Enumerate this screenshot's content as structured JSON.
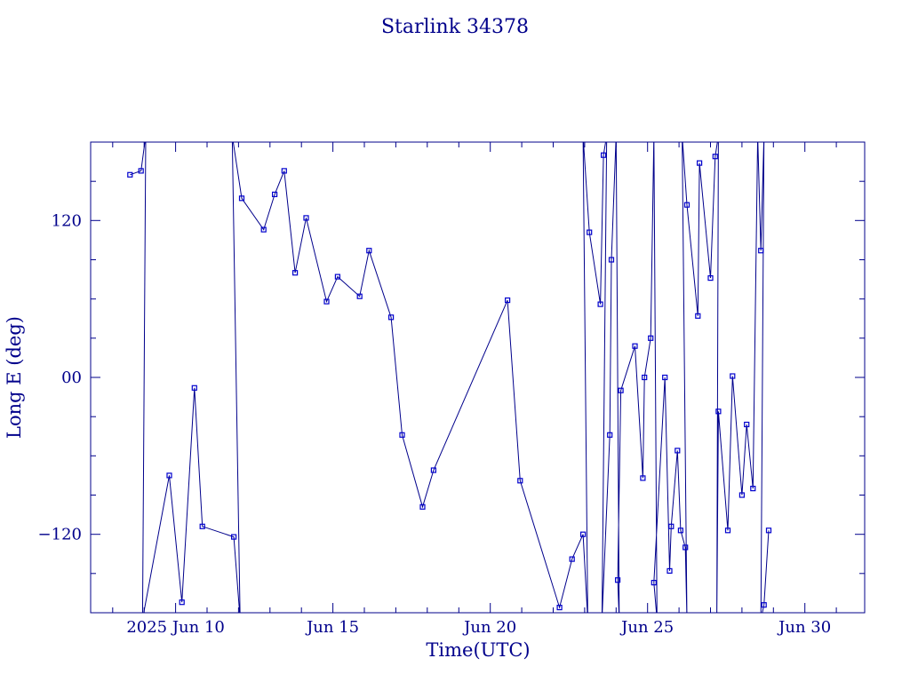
{
  "chart_data": {
    "type": "line",
    "title": "Starlink 34378",
    "xlabel": "Time(UTC)",
    "ylabel": "Long E (deg)",
    "x_unit": "days (2025 June day-of-month)",
    "xlim": [
      7.3,
      31.9
    ],
    "ylim": [
      -180,
      180
    ],
    "x_ticks": [
      {
        "value": 10,
        "label": "2025 Jun 10"
      },
      {
        "value": 15,
        "label": "Jun 15"
      },
      {
        "value": 20,
        "label": "Jun 20"
      },
      {
        "value": 25,
        "label": "Jun 25"
      },
      {
        "value": 30,
        "label": "Jun 30"
      }
    ],
    "y_ticks": [
      {
        "value": 120,
        "label": "120"
      },
      {
        "value": 0,
        "label": "00"
      },
      {
        "value": -120,
        "label": "−120"
      }
    ],
    "color": "#00008b",
    "marker_color": "#0000cd",
    "series": [
      {
        "points": [
          [
            8.55,
            155
          ],
          [
            8.9,
            158
          ],
          [
            9.05,
            185
          ],
          [
            8.95,
            -185
          ],
          [
            9.8,
            -75
          ],
          [
            10.2,
            -172
          ],
          [
            10.6,
            -8
          ],
          [
            10.85,
            -114
          ],
          [
            11.85,
            -122
          ],
          [
            12.05,
            -185
          ],
          [
            11.8,
            185
          ],
          [
            12.1,
            137
          ],
          [
            12.8,
            113
          ],
          [
            13.15,
            140
          ],
          [
            13.45,
            158
          ],
          [
            13.8,
            80
          ],
          [
            14.15,
            122
          ],
          [
            14.8,
            58
          ],
          [
            15.15,
            77
          ],
          [
            15.85,
            62
          ],
          [
            16.15,
            97
          ],
          [
            16.85,
            46
          ],
          [
            17.2,
            -44
          ],
          [
            17.85,
            -99
          ],
          [
            18.2,
            -71
          ],
          [
            20.55,
            59
          ],
          [
            20.95,
            -79
          ],
          [
            22.2,
            -176
          ],
          [
            22.6,
            -139
          ],
          [
            22.95,
            -120
          ],
          [
            23.1,
            -185
          ],
          [
            22.95,
            185
          ],
          [
            23.15,
            111
          ],
          [
            23.5,
            56
          ],
          [
            23.6,
            170
          ],
          [
            23.7,
            185
          ],
          [
            23.55,
            -185
          ],
          [
            23.8,
            -44
          ],
          [
            23.85,
            90
          ],
          [
            24.0,
            185
          ],
          [
            24.1,
            -185
          ],
          [
            24.05,
            -155
          ],
          [
            24.15,
            -10
          ],
          [
            24.6,
            24
          ],
          [
            24.85,
            -77
          ],
          [
            24.9,
            0
          ],
          [
            25.1,
            30
          ],
          [
            25.2,
            185
          ],
          [
            25.3,
            -185
          ],
          [
            25.2,
            -157
          ],
          [
            25.55,
            0
          ],
          [
            25.7,
            -148
          ],
          [
            25.75,
            -114
          ],
          [
            25.95,
            -56
          ],
          [
            26.05,
            -117
          ],
          [
            26.2,
            -130
          ],
          [
            26.25,
            -185
          ],
          [
            26.1,
            185
          ],
          [
            26.25,
            132
          ],
          [
            26.6,
            47
          ],
          [
            26.65,
            164
          ],
          [
            27.0,
            76
          ],
          [
            27.15,
            169
          ],
          [
            27.25,
            185
          ],
          [
            27.2,
            -185
          ],
          [
            27.25,
            -26
          ],
          [
            27.55,
            -117
          ],
          [
            27.7,
            1
          ],
          [
            28.0,
            -90
          ],
          [
            28.15,
            -36
          ],
          [
            28.35,
            -85
          ],
          [
            28.5,
            185
          ],
          [
            28.6,
            97
          ],
          [
            28.7,
            185
          ],
          [
            28.6,
            -185
          ],
          [
            28.7,
            -174
          ],
          [
            28.85,
            -117
          ]
        ],
        "markers": [
          [
            8.55,
            155
          ],
          [
            8.9,
            158
          ],
          [
            9.8,
            -75
          ],
          [
            10.2,
            -172
          ],
          [
            10.6,
            -8
          ],
          [
            10.85,
            -114
          ],
          [
            11.85,
            -122
          ],
          [
            12.1,
            137
          ],
          [
            12.8,
            113
          ],
          [
            13.15,
            140
          ],
          [
            13.45,
            158
          ],
          [
            13.8,
            80
          ],
          [
            14.15,
            122
          ],
          [
            14.8,
            58
          ],
          [
            15.15,
            77
          ],
          [
            15.85,
            62
          ],
          [
            16.15,
            97
          ],
          [
            16.85,
            46
          ],
          [
            17.2,
            -44
          ],
          [
            17.85,
            -99
          ],
          [
            18.2,
            -71
          ],
          [
            20.55,
            59
          ],
          [
            20.95,
            -79
          ],
          [
            22.2,
            -176
          ],
          [
            22.6,
            -139
          ],
          [
            22.95,
            -120
          ],
          [
            23.15,
            111
          ],
          [
            23.5,
            56
          ],
          [
            23.6,
            170
          ],
          [
            23.8,
            -44
          ],
          [
            23.85,
            90
          ],
          [
            24.05,
            -155
          ],
          [
            24.15,
            -10
          ],
          [
            24.6,
            24
          ],
          [
            24.85,
            -77
          ],
          [
            24.9,
            0
          ],
          [
            25.1,
            30
          ],
          [
            25.2,
            -157
          ],
          [
            25.55,
            0
          ],
          [
            25.7,
            -148
          ],
          [
            25.75,
            -114
          ],
          [
            25.95,
            -56
          ],
          [
            26.05,
            -117
          ],
          [
            26.2,
            -130
          ],
          [
            26.25,
            132
          ],
          [
            26.6,
            47
          ],
          [
            26.65,
            164
          ],
          [
            27.0,
            76
          ],
          [
            27.15,
            169
          ],
          [
            27.25,
            -26
          ],
          [
            27.55,
            -117
          ],
          [
            27.7,
            1
          ],
          [
            28.0,
            -90
          ],
          [
            28.15,
            -36
          ],
          [
            28.35,
            -85
          ],
          [
            28.6,
            97
          ],
          [
            28.7,
            -174
          ],
          [
            28.85,
            -117
          ]
        ]
      }
    ]
  }
}
